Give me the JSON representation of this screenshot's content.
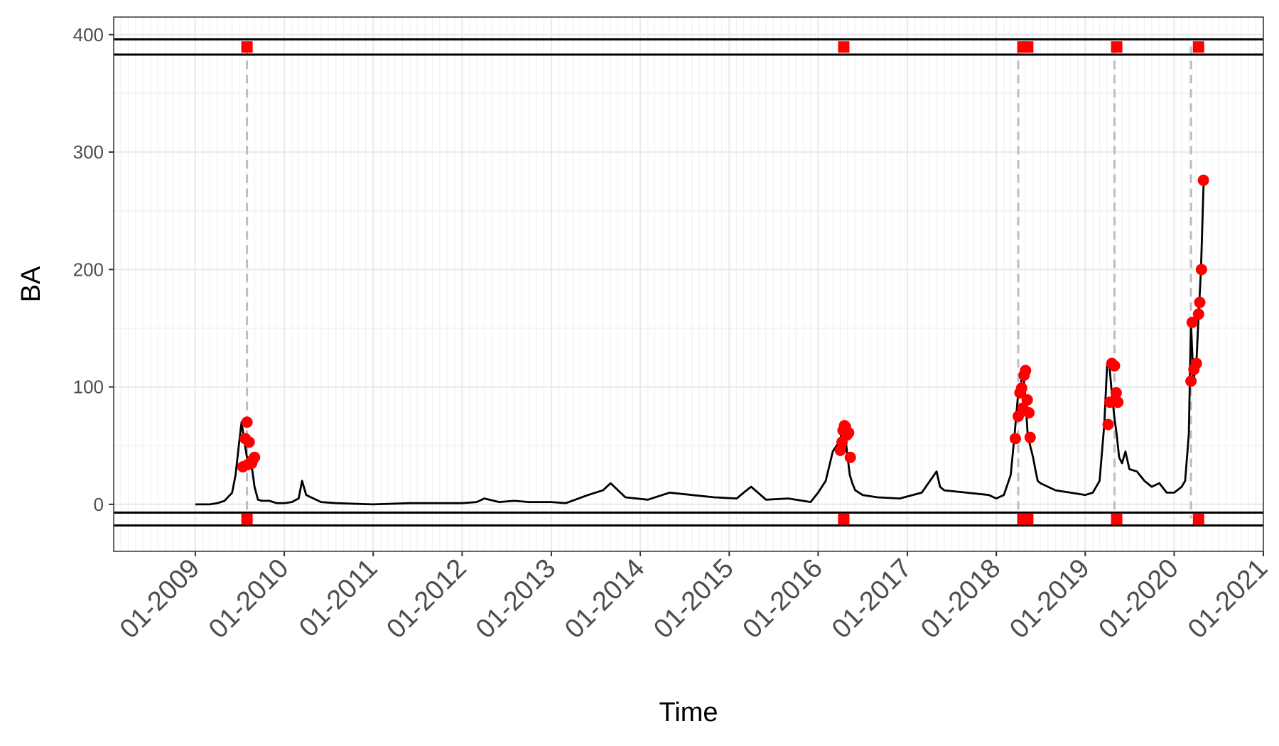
{
  "chart_data": {
    "type": "line",
    "title": "",
    "xlabel": "Time",
    "ylabel": "BA",
    "xlim": [
      "2008-02-01",
      "2021-01-01"
    ],
    "ylim": [
      -40,
      415
    ],
    "y_ticks": [
      0,
      100,
      200,
      300,
      400
    ],
    "x_ticks": [
      "2009-01-01",
      "2010-01-01",
      "2011-01-01",
      "2012-01-01",
      "2013-01-01",
      "2014-01-01",
      "2015-01-01",
      "2016-01-01",
      "2017-01-01",
      "2018-01-01",
      "2019-01-01",
      "2020-01-01",
      "2021-01-01"
    ],
    "x_tick_labels": [
      "01-2009",
      "01-2010",
      "01-2011",
      "01-2012",
      "01-2013",
      "01-2014",
      "01-2015",
      "01-2016",
      "01-2017",
      "01-2018",
      "01-2019",
      "01-2020",
      "01-2021"
    ],
    "grid": true,
    "minor_grid": "monthly vertical lines",
    "legend": "none",
    "colors": {
      "line": "#000000",
      "points": "#ff0000",
      "markers": "#ff0000",
      "vlines": "#bdbdbd",
      "grid_major": "#ebebeb",
      "grid_minor": "#f2f2f2",
      "panel_border": "#333333"
    },
    "series": [
      {
        "type": "line",
        "x": [
          "2009-01-01",
          "2009-02-01",
          "2009-03-01",
          "2009-04-01",
          "2009-05-01",
          "2009-06-01",
          "2009-06-15",
          "2009-07-01",
          "2009-07-10",
          "2009-07-20",
          "2009-08-01",
          "2009-08-08",
          "2009-08-15",
          "2009-08-22",
          "2009-09-01",
          "2009-09-15",
          "2009-10-01",
          "2009-11-01",
          "2009-12-01",
          "2010-01-01",
          "2010-02-01",
          "2010-03-01",
          "2010-03-15",
          "2010-04-01",
          "2010-05-01",
          "2010-06-01",
          "2010-08-01",
          "2011-01-01",
          "2011-06-01",
          "2012-01-01",
          "2012-03-01",
          "2012-04-01",
          "2012-06-01",
          "2012-08-01",
          "2012-10-01",
          "2013-01-01",
          "2013-03-01",
          "2013-06-01",
          "2013-08-01",
          "2013-09-01",
          "2013-11-01",
          "2014-02-01",
          "2014-05-01",
          "2014-08-01",
          "2014-11-01",
          "2015-02-01",
          "2015-03-01",
          "2015-04-01",
          "2015-06-01",
          "2015-09-01",
          "2015-12-01",
          "2016-01-01",
          "2016-02-01",
          "2016-03-01",
          "2016-04-01",
          "2016-04-10",
          "2016-04-20",
          "2016-05-01",
          "2016-05-10",
          "2016-05-20",
          "2016-06-01",
          "2016-07-01",
          "2016-09-01",
          "2016-12-01",
          "2017-03-01",
          "2017-05-01",
          "2017-05-15",
          "2017-06-01",
          "2017-09-01",
          "2017-12-01",
          "2018-01-01",
          "2018-02-01",
          "2018-03-01",
          "2018-03-15",
          "2018-04-01",
          "2018-04-10",
          "2018-04-20",
          "2018-05-01",
          "2018-05-10",
          "2018-05-20",
          "2018-06-01",
          "2018-06-10",
          "2018-06-20",
          "2018-07-01",
          "2018-08-01",
          "2018-09-01",
          "2018-11-01",
          "2019-01-01",
          "2019-02-01",
          "2019-03-01",
          "2019-03-20",
          "2019-04-01",
          "2019-04-10",
          "2019-04-20",
          "2019-05-01",
          "2019-05-10",
          "2019-05-20",
          "2019-06-01",
          "2019-06-15",
          "2019-07-01",
          "2019-08-01",
          "2019-09-01",
          "2019-10-01",
          "2019-11-01",
          "2019-12-01",
          "2020-01-01",
          "2020-02-01",
          "2020-02-15",
          "2020-03-01",
          "2020-03-10",
          "2020-03-20",
          "2020-04-01",
          "2020-04-10",
          "2020-04-20",
          "2020-05-01"
        ],
        "values": [
          0,
          0,
          0,
          1,
          3,
          10,
          25,
          55,
          70,
          55,
          40,
          38,
          35,
          30,
          15,
          4,
          3,
          3,
          1,
          1,
          2,
          5,
          20,
          8,
          5,
          2,
          1,
          0,
          1,
          1,
          2,
          5,
          2,
          3,
          2,
          2,
          1,
          8,
          12,
          18,
          6,
          4,
          10,
          8,
          6,
          5,
          10,
          15,
          4,
          5,
          2,
          10,
          20,
          45,
          55,
          67,
          60,
          40,
          25,
          18,
          12,
          8,
          6,
          5,
          10,
          28,
          15,
          12,
          10,
          8,
          5,
          8,
          25,
          55,
          95,
          100,
          114,
          90,
          58,
          50,
          40,
          30,
          20,
          18,
          15,
          12,
          10,
          8,
          10,
          20,
          68,
          120,
          118,
          95,
          73,
          60,
          40,
          35,
          45,
          30,
          28,
          20,
          15,
          18,
          10,
          10,
          15,
          20,
          60,
          155,
          105,
          120,
          160,
          200,
          276
        ]
      },
      {
        "type": "scatter",
        "x": [
          "2009-07-15",
          "2009-07-25",
          "2009-08-01",
          "2009-08-10",
          "2009-08-20",
          "2009-08-25",
          "2009-09-01",
          "2009-08-05",
          "2016-04-01",
          "2016-04-08",
          "2016-04-12",
          "2016-04-18",
          "2016-04-22",
          "2016-04-28",
          "2016-05-05",
          "2016-05-12",
          "2018-03-20",
          "2018-04-01",
          "2018-04-08",
          "2018-04-15",
          "2018-04-20",
          "2018-04-25",
          "2018-05-01",
          "2018-05-08",
          "2018-05-15",
          "2018-05-20",
          "2019-04-05",
          "2019-04-12",
          "2019-04-20",
          "2019-05-01",
          "2019-05-08",
          "2019-05-15",
          "2020-03-10",
          "2020-03-15",
          "2020-03-22",
          "2020-04-01",
          "2020-04-10",
          "2020-04-15",
          "2020-04-22",
          "2020-04-30"
        ],
        "values": [
          32,
          56,
          70,
          53,
          35,
          38,
          40,
          34,
          46,
          53,
          63,
          67,
          66,
          59,
          61,
          40,
          56,
          75,
          95,
          99,
          82,
          110,
          114,
          89,
          78,
          57,
          68,
          87,
          120,
          118,
          95,
          87,
          105,
          155,
          115,
          120,
          162,
          172,
          200,
          276
        ]
      }
    ],
    "markers": [
      "2009-08-01",
      "2016-04-15",
      "2018-04-20",
      "2018-05-10",
      "2019-05-10",
      "2020-04-10"
    ],
    "vlines": [
      "2009-08-01",
      "2018-04-01",
      "2019-05-01",
      "2020-03-10"
    ]
  }
}
